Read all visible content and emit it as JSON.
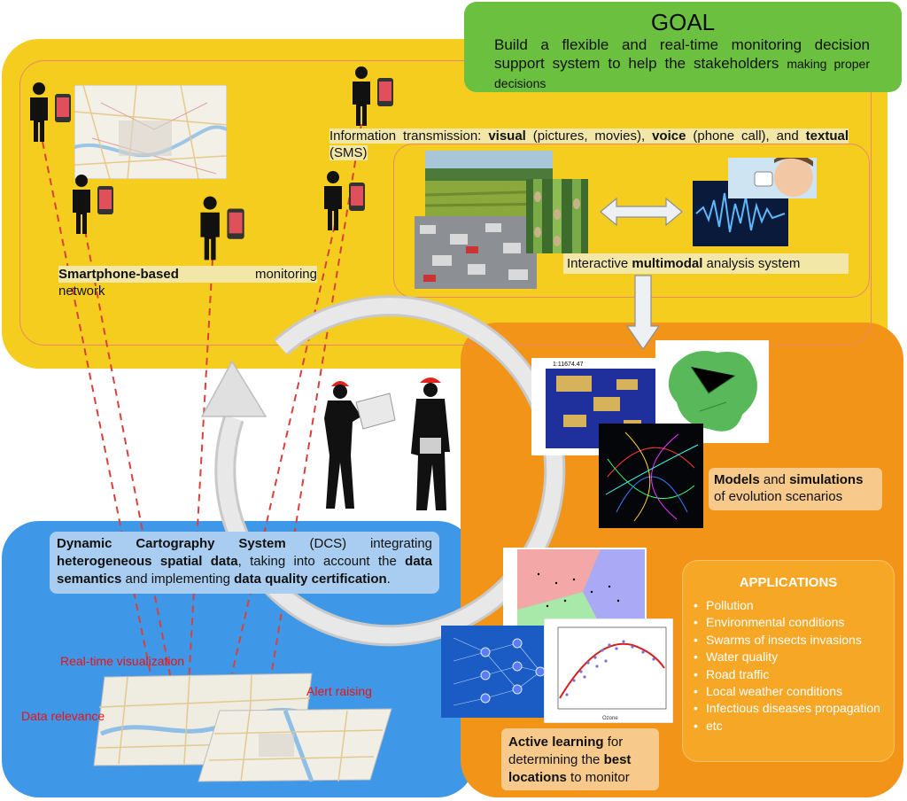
{
  "goal": {
    "title": "GOAL",
    "text_main": "Build a flexible and real-time monitoring decision support system to help the stakeholders",
    "text_tail": "making proper decisions"
  },
  "info_transmission": {
    "p1": "Information transmission: ",
    "b1": "visual",
    "p2": " (pictures, movies), ",
    "b2": "voice",
    "p3": " (phone call), and ",
    "b3": "textual",
    "p4": " (SMS)"
  },
  "smartphone_network": {
    "bold": "Smartphone-based",
    "rest": "monitoring",
    "line2": "network"
  },
  "multimodal": {
    "p1": "Interactive ",
    "b1": "multimodal",
    "p2": " analysis system"
  },
  "models": {
    "b1": "Models",
    "p1": " and ",
    "b2": "simulations",
    "p2": "of evolution scenarios"
  },
  "dcs": {
    "b1": "Dynamic Cartography System",
    "p1": " (DCS) integrating ",
    "b2": "heterogeneous spatial data",
    "p2": ", taking into account the ",
    "b3": "data semantics",
    "p3": " and implementing ",
    "b4": "data quality certification",
    "p4": "."
  },
  "map_labels": {
    "realtime": "Real-time visualization",
    "alert": "Alert raising",
    "relevance": "Data relevance"
  },
  "active_learning": {
    "b1": "Active learning",
    "p1": " for determining the ",
    "b2": "best",
    "b3": "locations",
    "p2": " to monitor"
  },
  "applications": {
    "title": "APPLICATIONS",
    "items": [
      "Pollution",
      "Environmental conditions",
      "Swarms of insects invasions",
      "Water quality",
      "Road traffic",
      "Local weather conditions",
      "Infectious diseases propagation",
      "etc"
    ]
  },
  "sim_label": "1:11674.47",
  "chart_axis": {
    "xlabel": "Ozone"
  },
  "colors": {
    "yellow": "#f4cd1e",
    "blue": "#3f97e8",
    "orange": "#f29418",
    "green": "#6cc040",
    "red_text": "#e11111"
  }
}
